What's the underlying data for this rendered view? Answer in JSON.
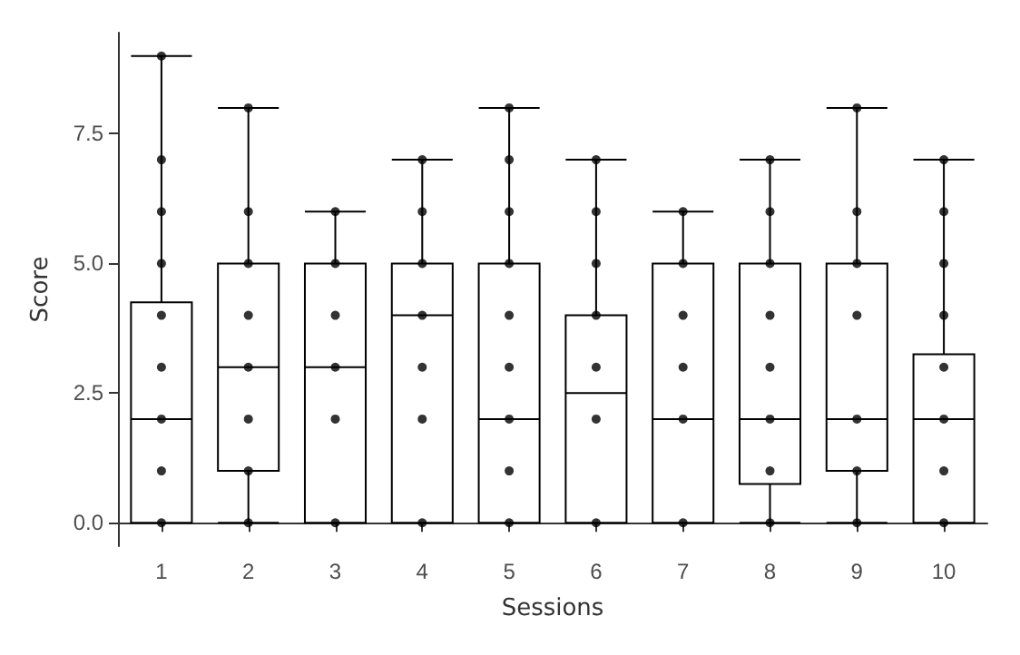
{
  "chart_data": {
    "type": "box",
    "xlabel": "Sessions",
    "ylabel": "Score",
    "categories": [
      "1",
      "2",
      "3",
      "4",
      "5",
      "6",
      "7",
      "8",
      "9",
      "10"
    ],
    "ylim": [
      -0.45,
      9.45
    ],
    "yticks": [
      {
        "value": 0,
        "label": "0.0"
      },
      {
        "value": 2.5,
        "label": "2.5"
      },
      {
        "value": 5,
        "label": "5.0"
      },
      {
        "value": 7.5,
        "label": "7.5"
      }
    ],
    "grid": false,
    "series": [
      {
        "color": "#000000",
        "boxes": [
          {
            "low": 0,
            "q1": 0,
            "median": 2,
            "q3": 4.25,
            "high": 9
          },
          {
            "low": 0,
            "q1": 1,
            "median": 3,
            "q3": 5,
            "high": 8
          },
          {
            "low": 0,
            "q1": 0,
            "median": 3,
            "q3": 5,
            "high": 6
          },
          {
            "low": 0,
            "q1": 0,
            "median": 4,
            "q3": 5,
            "high": 7
          },
          {
            "low": 0,
            "q1": 0,
            "median": 2,
            "q3": 5,
            "high": 8
          },
          {
            "low": 0,
            "q1": 0,
            "median": 2.5,
            "q3": 4,
            "high": 7
          },
          {
            "low": 0,
            "q1": 0,
            "median": 2,
            "q3": 5,
            "high": 6
          },
          {
            "low": 0,
            "q1": 0.75,
            "median": 2,
            "q3": 5,
            "high": 7
          },
          {
            "low": 0,
            "q1": 1,
            "median": 2,
            "q3": 5,
            "high": 8
          },
          {
            "low": 0,
            "q1": 0,
            "median": 2,
            "q3": 3.25,
            "high": 7
          }
        ]
      },
      {
        "type": "scatter",
        "color": "#000000",
        "marker": "circle",
        "x": [
          "1",
          "1",
          "1",
          "1",
          "1",
          "1",
          "1",
          "1",
          "1",
          "2",
          "2",
          "2",
          "2",
          "2",
          "2",
          "2",
          "2",
          "3",
          "3",
          "3",
          "3",
          "3",
          "3",
          "4",
          "4",
          "4",
          "4",
          "4",
          "4",
          "4",
          "5",
          "5",
          "5",
          "5",
          "5",
          "5",
          "5",
          "5",
          "5",
          "6",
          "6",
          "6",
          "6",
          "6",
          "6",
          "6",
          "7",
          "7",
          "7",
          "7",
          "7",
          "7",
          "8",
          "8",
          "8",
          "8",
          "8",
          "8",
          "8",
          "8",
          "9",
          "9",
          "9",
          "9",
          "9",
          "9",
          "9",
          "10",
          "10",
          "10",
          "10",
          "10",
          "10",
          "10",
          "10"
        ],
        "values": [
          0,
          1,
          2,
          3,
          4,
          5,
          6,
          7,
          9,
          0,
          1,
          2,
          3,
          4,
          5,
          6,
          8,
          0,
          2,
          3,
          4,
          5,
          6,
          0,
          2,
          3,
          4,
          5,
          6,
          7,
          0,
          1,
          2,
          3,
          4,
          5,
          6,
          7,
          8,
          0,
          2,
          3,
          4,
          5,
          6,
          7,
          0,
          2,
          3,
          4,
          5,
          6,
          0,
          1,
          2,
          3,
          4,
          5,
          6,
          7,
          0,
          1,
          2,
          4,
          5,
          6,
          8,
          0,
          1,
          2,
          3,
          4,
          5,
          6,
          7
        ]
      }
    ]
  }
}
